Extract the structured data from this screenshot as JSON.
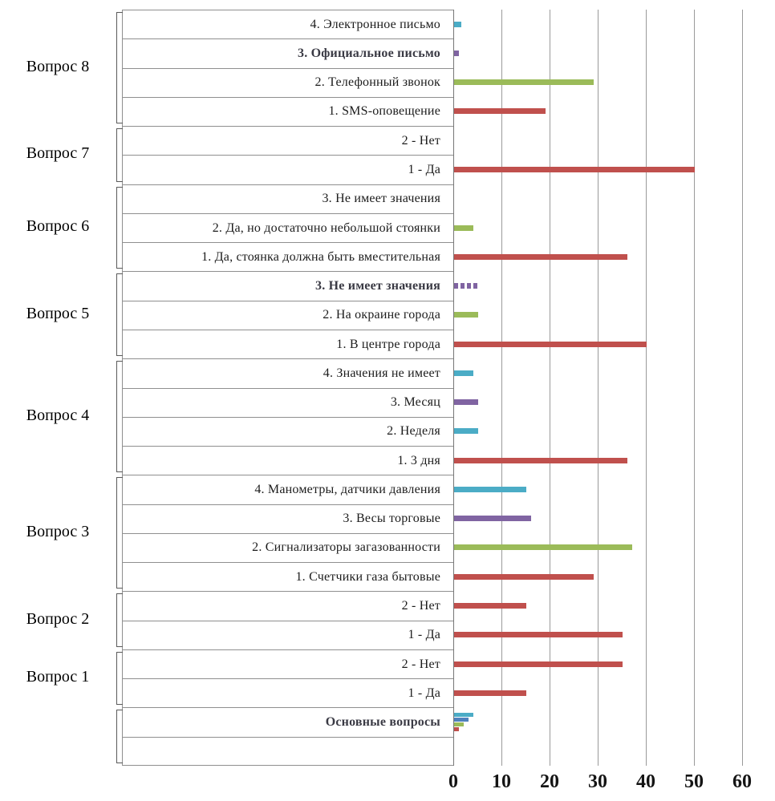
{
  "chart_data": {
    "type": "bar",
    "orientation": "horizontal",
    "title": "",
    "xlabel": "",
    "ylabel": "",
    "x_axis": {
      "ticks": [
        0,
        10,
        20,
        30,
        40,
        50,
        60
      ],
      "min": 0,
      "max": 60,
      "grid": true
    },
    "colors": {
      "red": "#C0504D",
      "green": "#9BBB59",
      "purple": "#8064A2",
      "teal": "#4BACC6",
      "blue": "#4F81BD"
    },
    "groups": [
      {
        "label": "Вопрос 8",
        "rows": [
          {
            "label": "4. Электронное письмо",
            "bars": [
              {
                "value": 1.5,
                "color": "teal"
              }
            ]
          },
          {
            "label": "3. Официальное письмо",
            "bold": true,
            "bars": [
              {
                "value": 1,
                "color": "purple"
              }
            ]
          },
          {
            "label": "2. Телефонный звонок",
            "bars": [
              {
                "value": 29,
                "color": "green"
              }
            ]
          },
          {
            "label": "1. SMS-оповещение",
            "bars": [
              {
                "value": 19,
                "color": "red"
              }
            ]
          }
        ]
      },
      {
        "label": "Вопрос 7",
        "rows": [
          {
            "label": "2 - Нет",
            "bars": []
          },
          {
            "label": "1 - Да",
            "bars": [
              {
                "value": 50,
                "color": "red"
              }
            ]
          }
        ]
      },
      {
        "label": "Вопрос 6",
        "rows": [
          {
            "label": "3. Не имеет значения",
            "bars": []
          },
          {
            "label": "2. Да, но достаточно небольшой стоянки",
            "bars": [
              {
                "value": 4,
                "color": "green"
              }
            ]
          },
          {
            "label": "1. Да, стоянка должна быть вместительная",
            "bars": [
              {
                "value": 36,
                "color": "red"
              }
            ]
          }
        ]
      },
      {
        "label": "Вопрос 5",
        "rows": [
          {
            "label": "3. Не имеет значения",
            "bold": true,
            "bars": [
              {
                "value": 5,
                "color": "purple",
                "dashed": true
              }
            ]
          },
          {
            "label": "2. На окраине города",
            "bars": [
              {
                "value": 5,
                "color": "green"
              }
            ]
          },
          {
            "label": "1. В центре города",
            "bars": [
              {
                "value": 40,
                "color": "red"
              }
            ]
          }
        ]
      },
      {
        "label": "Вопрос 4",
        "rows": [
          {
            "label": "4. Значения не имеет",
            "bars": [
              {
                "value": 4,
                "color": "teal"
              }
            ]
          },
          {
            "label": "3. Месяц",
            "bars": [
              {
                "value": 5,
                "color": "purple"
              }
            ]
          },
          {
            "label": "2. Неделя",
            "bars": [
              {
                "value": 5,
                "color": "teal"
              }
            ]
          },
          {
            "label": "1. 3 дня",
            "bars": [
              {
                "value": 36,
                "color": "red"
              }
            ]
          }
        ]
      },
      {
        "label": "Вопрос 3",
        "rows": [
          {
            "label": "4. Манометры, датчики давления",
            "bars": [
              {
                "value": 15,
                "color": "teal"
              }
            ]
          },
          {
            "label": "3. Весы торговые",
            "bars": [
              {
                "value": 16,
                "color": "purple"
              }
            ]
          },
          {
            "label": "2. Сигнализаторы загазованности",
            "bars": [
              {
                "value": 37,
                "color": "green"
              }
            ]
          },
          {
            "label": "1. Счетчики газа бытовые",
            "bars": [
              {
                "value": 29,
                "color": "red"
              }
            ]
          }
        ]
      },
      {
        "label": "Вопрос 2",
        "rows": [
          {
            "label": "2 - Нет",
            "bars": [
              {
                "value": 15,
                "color": "red"
              }
            ]
          },
          {
            "label": "1 - Да",
            "bars": [
              {
                "value": 35,
                "color": "red"
              }
            ]
          }
        ]
      },
      {
        "label": "Вопрос 1",
        "rows": [
          {
            "label": "2 - Нет",
            "bars": [
              {
                "value": 35,
                "color": "red"
              }
            ]
          },
          {
            "label": "1 - Да",
            "bars": [
              {
                "value": 15,
                "color": "red"
              }
            ]
          }
        ]
      },
      {
        "label": "",
        "rows": [
          {
            "label": "Основные вопросы",
            "bold": true,
            "bars": [
              {
                "value": 4,
                "color": "teal"
              },
              {
                "value": 3,
                "color": "blue"
              },
              {
                "value": 2,
                "color": "green"
              },
              {
                "value": 1,
                "color": "red"
              }
            ]
          },
          {
            "label": "",
            "bars": []
          }
        ]
      }
    ]
  }
}
